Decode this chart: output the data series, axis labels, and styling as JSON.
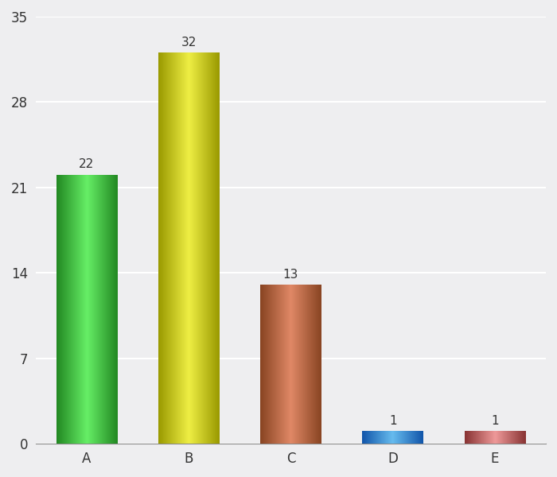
{
  "categories": [
    "A",
    "B",
    "C",
    "D",
    "E"
  ],
  "values": [
    22,
    32,
    13,
    1,
    1
  ],
  "bar_colors_center": [
    "#66ee66",
    "#eeee44",
    "#e08866",
    "#66bbee",
    "#ee9999"
  ],
  "bar_colors_edge": [
    "#228822",
    "#999900",
    "#884422",
    "#1155aa",
    "#883333"
  ],
  "ylim": [
    0,
    35
  ],
  "yticks": [
    0,
    7,
    14,
    21,
    28,
    35
  ],
  "background_color": "#eeeef0",
  "grid_color": "#ffffff",
  "label_fontsize": 12,
  "value_fontsize": 11,
  "bar_width": 0.6
}
